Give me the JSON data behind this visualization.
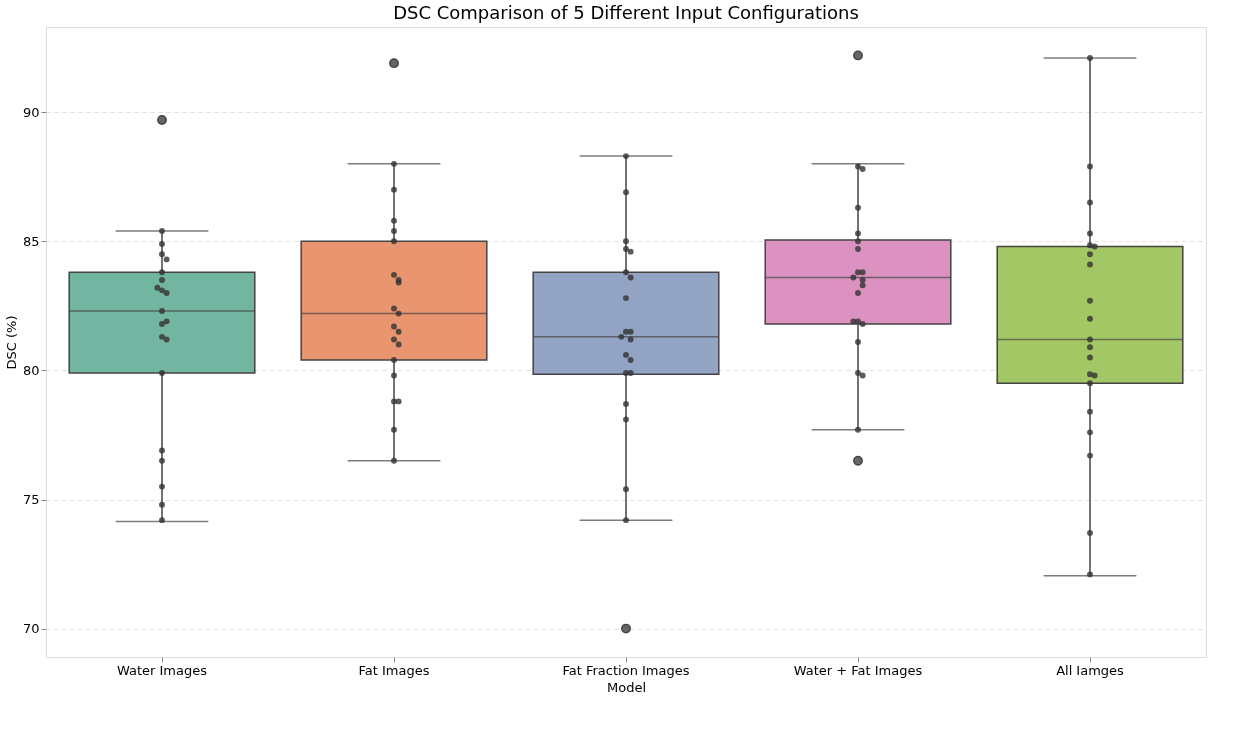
{
  "chart_data": {
    "type": "box",
    "title": "DSC Comparison of 5 Different Input Configurations",
    "xlabel": "Model",
    "ylabel": "DSC (%)",
    "categories": [
      "Water Images",
      "Fat Images",
      "Fat Fraction Images",
      "Water + Fat Images",
      "All Iamges"
    ],
    "colors": [
      "#72b5a0",
      "#e9956f",
      "#93a3c4",
      "#dc92c0",
      "#a3c764"
    ],
    "boxes": [
      {
        "low": 74.15,
        "q1": 79.9,
        "median": 82.3,
        "q3": 83.8,
        "high": 85.4,
        "outliers": [
          89.7
        ]
      },
      {
        "low": 76.5,
        "q1": 80.4,
        "median": 82.2,
        "q3": 85.0,
        "high": 88.0,
        "outliers": [
          91.9
        ]
      },
      {
        "low": 74.2,
        "q1": 79.85,
        "median": 81.3,
        "q3": 83.8,
        "high": 88.3,
        "outliers": [
          70.0
        ]
      },
      {
        "low": 77.7,
        "q1": 81.8,
        "median": 83.6,
        "q3": 85.05,
        "high": 88.0,
        "outliers": [
          92.2,
          76.5
        ]
      },
      {
        "low": 72.05,
        "q1": 79.5,
        "median": 81.2,
        "q3": 84.8,
        "high": 92.1
      }
    ],
    "ylim": [
      68.9,
      93.3
    ],
    "yticks": [
      70,
      75,
      80,
      85,
      90
    ],
    "grid": "y",
    "series": [
      {
        "type": "scatter",
        "color": "#333333",
        "x": [
          "Water Images",
          "Water Images",
          "Water Images",
          "Water Images",
          "Water Images",
          "Water Images",
          "Water Images",
          "Water Images",
          "Water Images",
          "Water Images",
          "Water Images",
          "Water Images",
          "Water Images",
          "Water Images",
          "Water Images",
          "Water Images",
          "Water Images",
          "Water Images",
          "Water Images",
          "Water Images",
          "Fat Images",
          "Fat Images",
          "Fat Images",
          "Fat Images",
          "Fat Images",
          "Fat Images",
          "Fat Images",
          "Fat Images",
          "Fat Images",
          "Fat Images",
          "Fat Images",
          "Fat Images",
          "Fat Images",
          "Fat Images",
          "Fat Images",
          "Fat Images",
          "Fat Images",
          "Fat Images",
          "Fat Images",
          "Fat Images",
          "Fat Fraction Images",
          "Fat Fraction Images",
          "Fat Fraction Images",
          "Fat Fraction Images",
          "Fat Fraction Images",
          "Fat Fraction Images",
          "Fat Fraction Images",
          "Fat Fraction Images",
          "Fat Fraction Images",
          "Fat Fraction Images",
          "Fat Fraction Images",
          "Fat Fraction Images",
          "Fat Fraction Images",
          "Fat Fraction Images",
          "Fat Fraction Images",
          "Fat Fraction Images",
          "Fat Fraction Images",
          "Fat Fraction Images",
          "Fat Fraction Images",
          "Fat Fraction Images",
          "Water + Fat Images",
          "Water + Fat Images",
          "Water + Fat Images",
          "Water + Fat Images",
          "Water + Fat Images",
          "Water + Fat Images",
          "Water + Fat Images",
          "Water + Fat Images",
          "Water + Fat Images",
          "Water + Fat Images",
          "Water + Fat Images",
          "Water + Fat Images",
          "Water + Fat Images",
          "Water + Fat Images",
          "Water + Fat Images",
          "Water + Fat Images",
          "Water + Fat Images",
          "Water + Fat Images",
          "Water + Fat Images",
          "All Iamges",
          "All Iamges",
          "All Iamges",
          "All Iamges",
          "All Iamges",
          "All Iamges",
          "All Iamges",
          "All Iamges",
          "All Iamges",
          "All Iamges",
          "All Iamges",
          "All Iamges",
          "All Iamges",
          "All Iamges",
          "All Iamges",
          "All Iamges",
          "All Iamges",
          "All Iamges",
          "All Iamges",
          "All Iamges",
          "All Iamges"
        ],
        "values": [
          85.4,
          84.9,
          84.5,
          84.3,
          83.8,
          83.5,
          83.1,
          83.0,
          83.2,
          82.3,
          81.8,
          81.9,
          81.3,
          81.2,
          79.9,
          76.9,
          76.5,
          75.5,
          74.8,
          74.2,
          88.0,
          87.0,
          85.8,
          85.4,
          85.0,
          83.7,
          83.5,
          83.4,
          82.4,
          82.2,
          81.7,
          81.5,
          81.2,
          81.0,
          80.4,
          79.8,
          78.8,
          78.8,
          77.7,
          76.5,
          88.3,
          86.9,
          85.0,
          84.7,
          84.6,
          83.8,
          83.6,
          82.8,
          81.5,
          81.5,
          81.3,
          81.2,
          80.6,
          80.4,
          79.9,
          79.9,
          78.7,
          78.1,
          75.4,
          74.2,
          87.9,
          87.8,
          86.3,
          85.3,
          85.0,
          84.7,
          83.8,
          83.8,
          83.6,
          83.5,
          83.3,
          83.0,
          81.9,
          81.8,
          81.9,
          81.1,
          79.9,
          79.8,
          77.7,
          92.1,
          87.9,
          86.5,
          85.3,
          84.85,
          84.8,
          84.5,
          84.1,
          82.7,
          82.0,
          81.2,
          80.9,
          80.5,
          79.85,
          79.8,
          79.5,
          78.4,
          77.6,
          76.7,
          73.7,
          72.1
        ]
      }
    ]
  }
}
